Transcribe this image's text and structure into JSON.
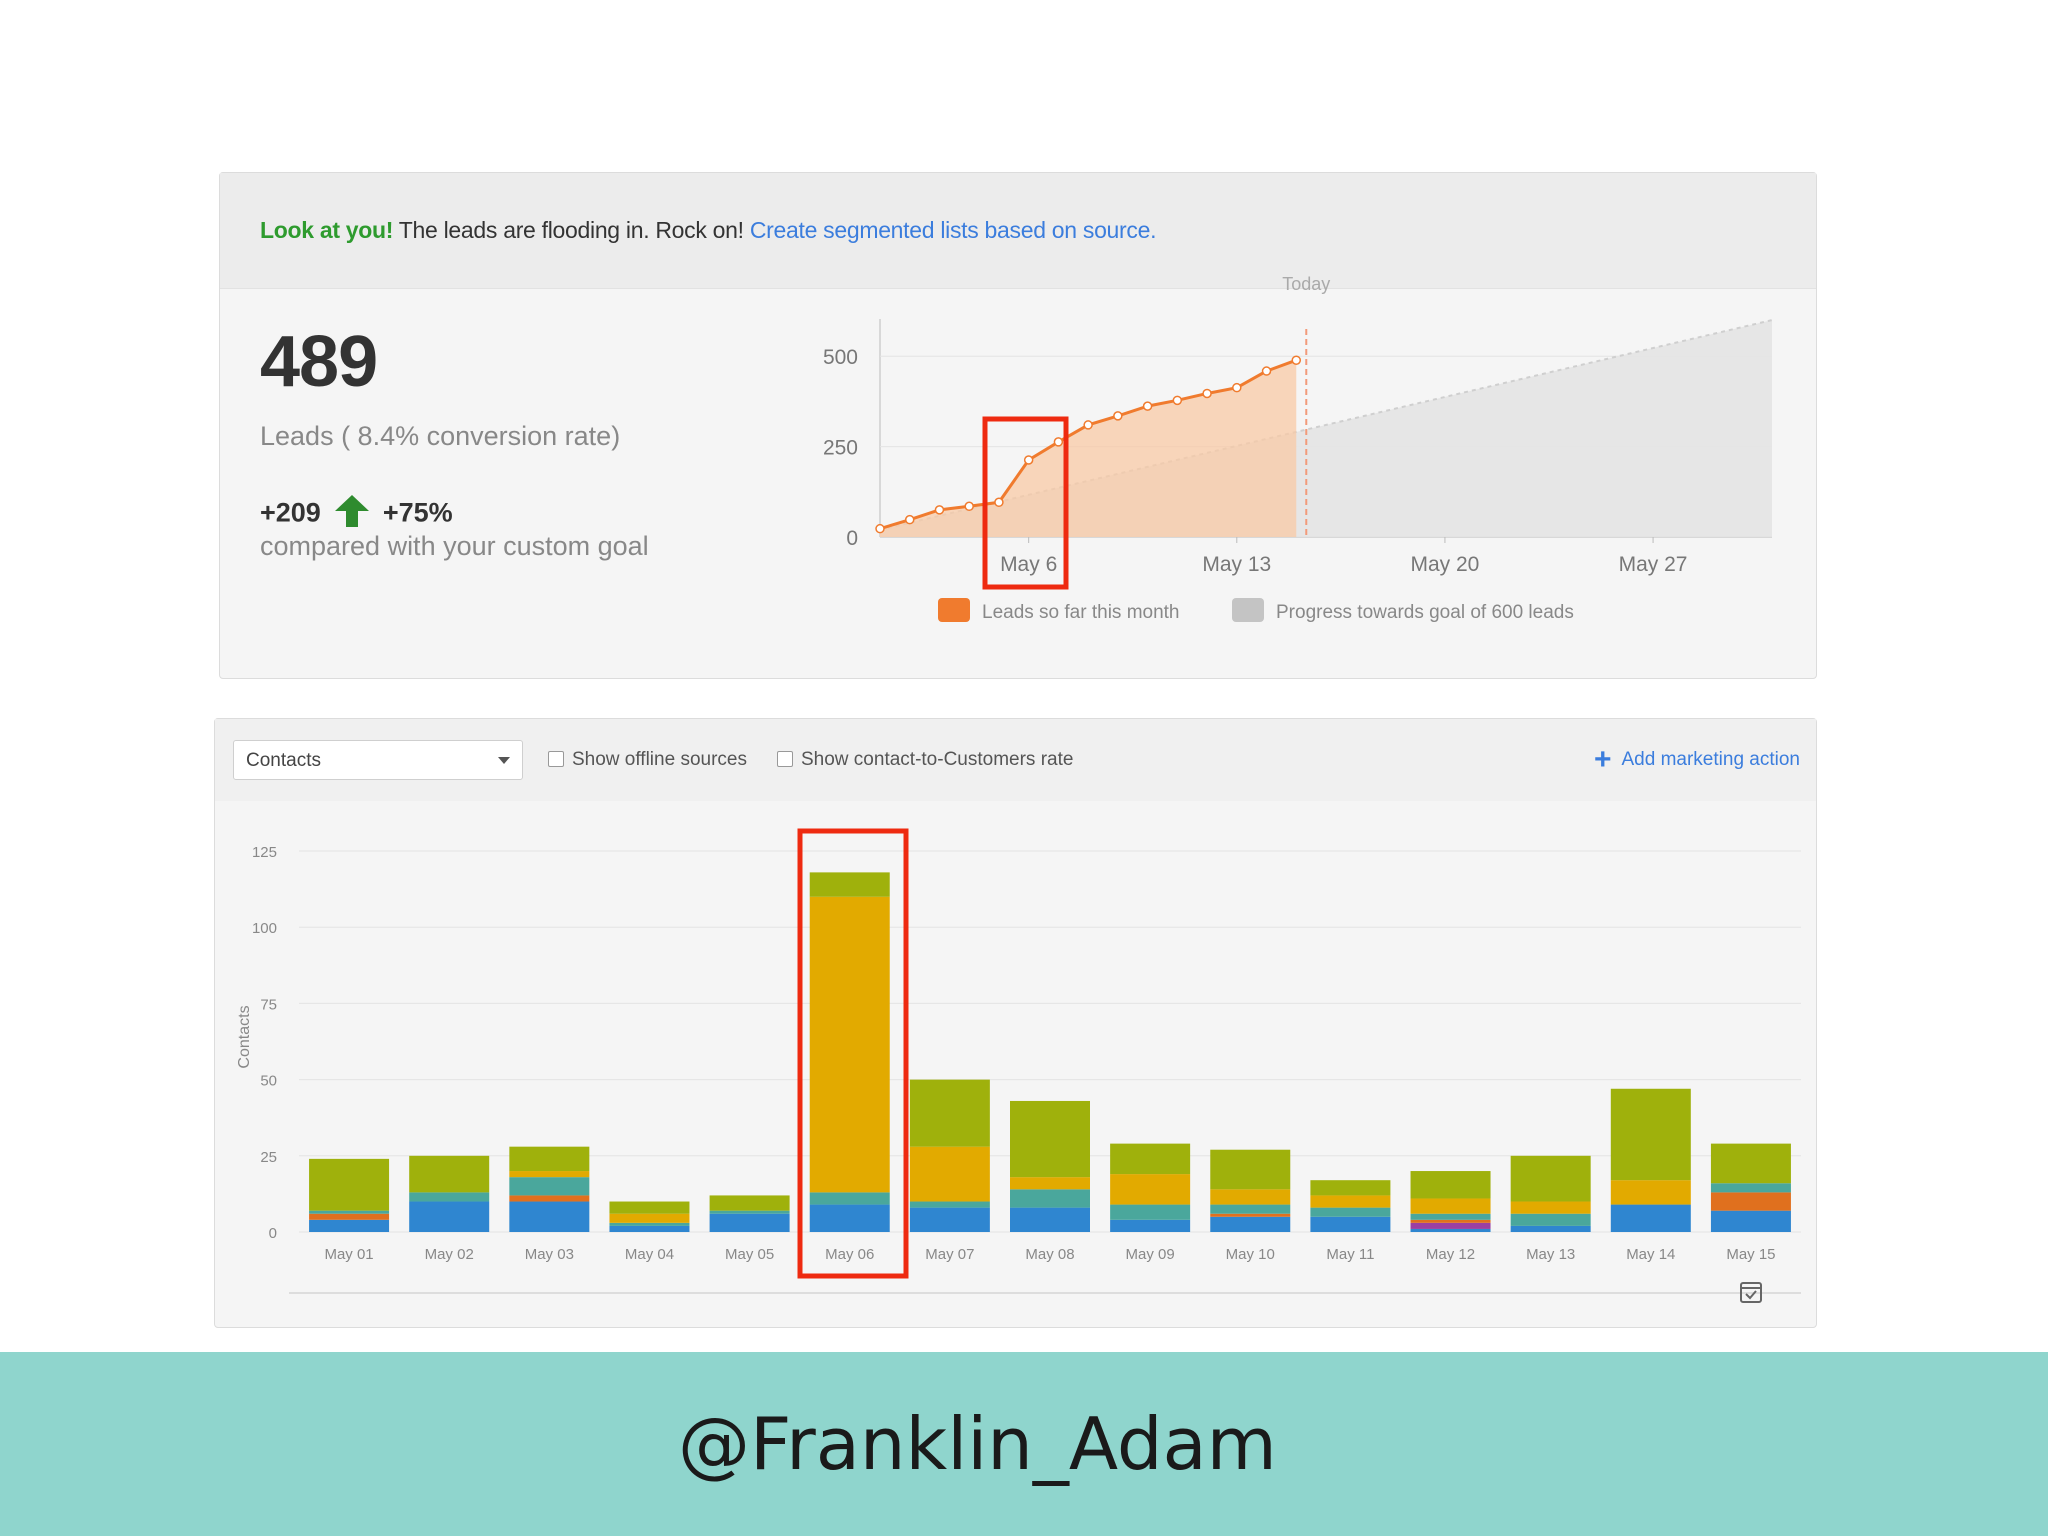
{
  "banner": {
    "highlight": "Look at you!",
    "message": " The leads are flooding in. Rock on! ",
    "link": "Create segmented lists based on source."
  },
  "summary": {
    "leads_count": "489",
    "caption": "Leads ( 8.4% conversion rate)",
    "delta_abs": "+209",
    "delta_pct": "+75%",
    "note": "compared with your custom goal",
    "colors": {
      "up_arrow": "#2e8b2e"
    }
  },
  "chart_data": [
    {
      "type": "line",
      "today_label": "Today",
      "y_ticks": [
        "500",
        "250",
        "0"
      ],
      "ylim": [
        0,
        500
      ],
      "x_tick_labels": [
        "May 6",
        "May 13",
        "May 20",
        "May 27"
      ],
      "x_tick_days": [
        6,
        13,
        20,
        27
      ],
      "xlim": [
        1,
        31
      ],
      "today_day": 15,
      "series": [
        {
          "name": "Leads so far this month",
          "color": "#f07b2e",
          "x": [
            1,
            2,
            3,
            4,
            5,
            6,
            7,
            8,
            9,
            10,
            11,
            12,
            13,
            14,
            15
          ],
          "y": [
            23,
            48,
            75,
            85,
            96,
            213,
            263,
            310,
            335,
            362,
            378,
            397,
            413,
            459,
            489
          ]
        },
        {
          "name": "Progress towards goal of 600 leads",
          "color": "#cccccc",
          "x": [
            1,
            31
          ],
          "y": [
            20,
            600
          ]
        }
      ],
      "grid": true,
      "legend": "bottom"
    },
    {
      "type": "bar",
      "stacked": true,
      "ylabel": "Contacts",
      "y_ticks": [
        "125",
        "100",
        "75",
        "50",
        "25",
        "0"
      ],
      "ylim": [
        0,
        125
      ],
      "categories": [
        "May 01",
        "May 02",
        "May 03",
        "May 04",
        "May 05",
        "May 06",
        "May 07",
        "May 08",
        "May 09",
        "May 10",
        "May 11",
        "May 12",
        "May 13",
        "May 14",
        "May 15"
      ],
      "series": [
        {
          "color": "#2f86d0",
          "values": [
            4,
            10,
            10,
            2,
            6,
            9,
            8,
            8,
            4,
            5,
            5,
            1,
            2,
            9,
            7
          ]
        },
        {
          "color": "#9b3fa3",
          "values": [
            0,
            0,
            0,
            0,
            0,
            0,
            0,
            0,
            0,
            0,
            0,
            2,
            0,
            0,
            0
          ]
        },
        {
          "color": "#e0701e",
          "values": [
            2,
            0,
            2,
            0,
            0,
            0,
            0,
            0,
            0,
            1,
            0,
            1,
            0,
            0,
            6
          ]
        },
        {
          "color": "#4aa79c",
          "values": [
            1,
            3,
            6,
            1,
            1,
            4,
            2,
            6,
            5,
            3,
            3,
            2,
            4,
            0,
            3
          ]
        },
        {
          "color": "#e2aa00",
          "values": [
            0,
            0,
            2,
            3,
            0,
            97,
            18,
            4,
            10,
            5,
            4,
            5,
            4,
            8,
            0
          ]
        },
        {
          "color": "#9fb10c",
          "values": [
            17,
            12,
            8,
            4,
            5,
            8,
            22,
            25,
            10,
            13,
            5,
            9,
            15,
            30,
            13
          ]
        }
      ],
      "grid": true
    }
  ],
  "toolbar": {
    "select_value": "Contacts",
    "checkbox_offline": "Show offline sources",
    "checkbox_rate": "Show contact-to-Customers rate",
    "add_action": "Add marketing action",
    "add_icon": "plus-icon"
  },
  "annotations": {
    "highlight_color": "#ee2a10"
  },
  "footer": {
    "handle": "@Franklin_Adam",
    "background": "#8fd5cd"
  }
}
